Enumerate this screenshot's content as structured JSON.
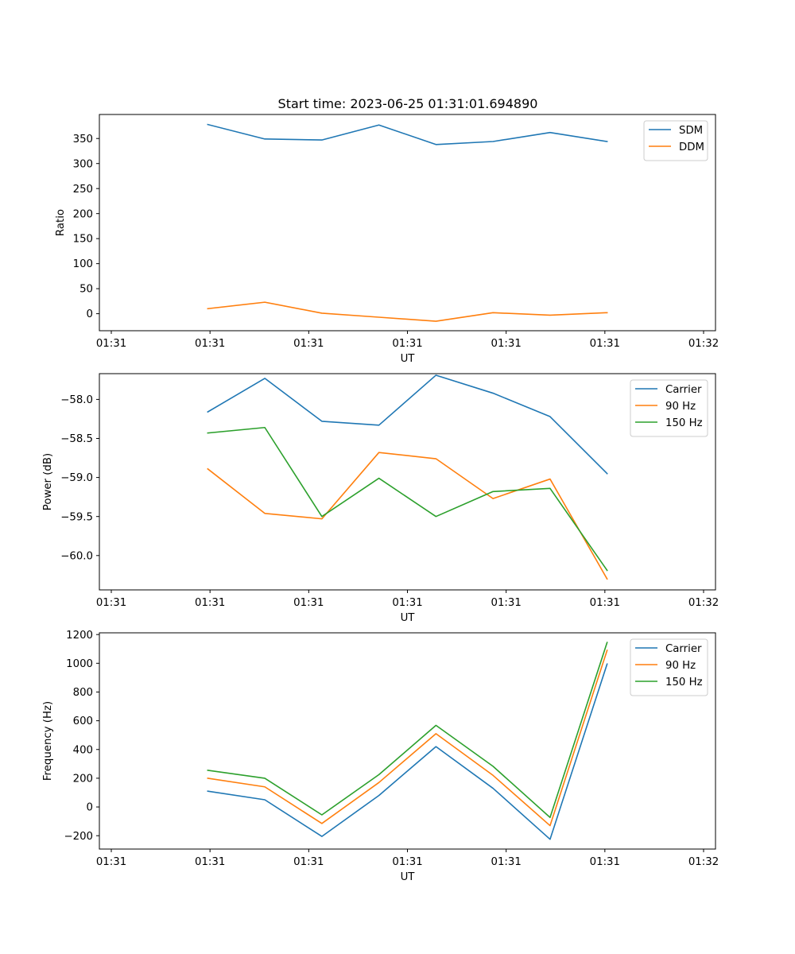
{
  "figure_title": "Start time: 2023-06-25 01:31:01.694890",
  "colors": {
    "c0": "#1f77b4",
    "c1": "#ff7f0e",
    "c2": "#2ca02c"
  },
  "chart_data": [
    {
      "type": "line",
      "title": "Start time: 2023-06-25 01:31:01.694890",
      "xlabel": "UT",
      "ylabel": "Ratio",
      "xticks": [
        "01:31",
        "01:31",
        "01:31",
        "01:31",
        "01:31",
        "01:31",
        "01:32"
      ],
      "yticks": [
        0,
        50,
        100,
        150,
        200,
        250,
        300,
        350
      ],
      "xlim": [
        -0.9,
        9.9
      ],
      "ylim": [
        -34,
        398
      ],
      "legend": "top-right",
      "x": [
        1,
        2,
        3,
        4,
        5,
        6,
        7,
        8
      ],
      "series": [
        {
          "name": "SDM",
          "color": "#1f77b4",
          "values": [
            378,
            349,
            347,
            377,
            338,
            344,
            362,
            344
          ]
        },
        {
          "name": "DDM",
          "color": "#ff7f0e",
          "values": [
            10,
            23,
            1,
            -7,
            -15,
            2,
            -3,
            2
          ]
        }
      ]
    },
    {
      "type": "line",
      "title": "",
      "xlabel": "UT",
      "ylabel": "Power (dB)",
      "xticks": [
        "01:31",
        "01:31",
        "01:31",
        "01:31",
        "01:31",
        "01:31",
        "01:32"
      ],
      "yticks": [
        "−58.0",
        "−58.5",
        "−59.0",
        "−59.5",
        "−60.0"
      ],
      "ytick_values": [
        -58.0,
        -58.5,
        -59.0,
        -59.5,
        -60.0
      ],
      "xlim": [
        -0.9,
        9.9
      ],
      "ylim": [
        -60.44,
        -57.67
      ],
      "legend": "top-right",
      "x": [
        1,
        2,
        3,
        4,
        5,
        6,
        7,
        8
      ],
      "series": [
        {
          "name": "Carrier",
          "color": "#1f77b4",
          "values": [
            -58.16,
            -57.73,
            -58.28,
            -58.33,
            -57.69,
            -57.92,
            -58.22,
            -58.95
          ]
        },
        {
          "name": "90 Hz",
          "color": "#ff7f0e",
          "values": [
            -58.89,
            -59.46,
            -59.53,
            -58.68,
            -58.76,
            -59.27,
            -59.02,
            -60.3
          ]
        },
        {
          "name": "150 Hz",
          "color": "#2ca02c",
          "values": [
            -58.43,
            -58.36,
            -59.5,
            -59.01,
            -59.5,
            -59.18,
            -59.14,
            -60.19
          ]
        }
      ]
    },
    {
      "type": "line",
      "title": "",
      "xlabel": "UT",
      "ylabel": "Frequency (Hz)",
      "xticks": [
        "01:31",
        "01:31",
        "01:31",
        "01:31",
        "01:31",
        "01:31",
        "01:32"
      ],
      "yticks": [
        "−200",
        "0",
        "200",
        "400",
        "600",
        "800",
        "1000",
        "1200"
      ],
      "ytick_values": [
        -200,
        0,
        200,
        400,
        600,
        800,
        1000,
        1200
      ],
      "xlim": [
        -0.9,
        9.9
      ],
      "ylim": [
        -293,
        1212
      ],
      "legend": "top-right",
      "x": [
        1,
        2,
        3,
        4,
        5,
        6,
        7,
        8
      ],
      "series": [
        {
          "name": "Carrier",
          "color": "#1f77b4",
          "values": [
            110,
            50,
            -205,
            80,
            420,
            130,
            -225,
            995
          ]
        },
        {
          "name": "90 Hz",
          "color": "#ff7f0e",
          "values": [
            200,
            140,
            -115,
            170,
            510,
            220,
            -130,
            1090
          ]
        },
        {
          "name": "150 Hz",
          "color": "#2ca02c",
          "values": [
            255,
            200,
            -55,
            225,
            568,
            283,
            -73,
            1145
          ]
        }
      ]
    }
  ]
}
